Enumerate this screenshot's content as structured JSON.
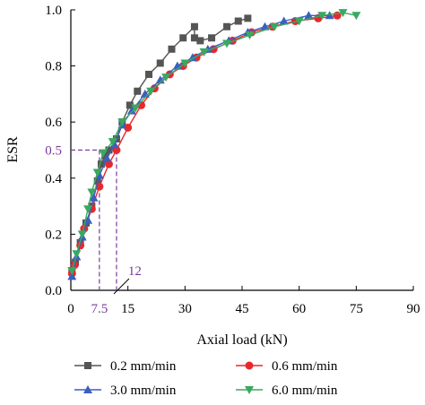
{
  "chart_data": {
    "type": "line",
    "xlabel": "Axial load (kN)",
    "ylabel": "ESR",
    "xlim": [
      0,
      90
    ],
    "ylim": [
      0,
      1.0
    ],
    "x_ticks": [
      0,
      15,
      30,
      45,
      60,
      75,
      90
    ],
    "y_ticks": [
      0.0,
      0.2,
      0.4,
      0.6,
      0.8,
      1.0
    ],
    "grid": false,
    "legend_position": "bottom",
    "annotations": {
      "esr_level": {
        "value": 0.5,
        "label": "0.5",
        "color": "#7a3b9a"
      },
      "load_a": {
        "value": 7.5,
        "label": "7.5",
        "color": "#7a3b9a"
      },
      "load_b": {
        "value": 12,
        "label": "12",
        "color": "#7a3b9a"
      }
    },
    "series": [
      {
        "name": "0.2 mm/min",
        "color": "#555555",
        "marker": "square",
        "points": [
          [
            0.3,
            0.07
          ],
          [
            1.2,
            0.1
          ],
          [
            2.5,
            0.17
          ],
          [
            4,
            0.24
          ],
          [
            5.5,
            0.3
          ],
          [
            7,
            0.39
          ],
          [
            8,
            0.45
          ],
          [
            9,
            0.48
          ],
          [
            10,
            0.5
          ],
          [
            12,
            0.54
          ],
          [
            13.5,
            0.6
          ],
          [
            15.5,
            0.66
          ],
          [
            17.5,
            0.71
          ],
          [
            20.5,
            0.77
          ],
          [
            23.5,
            0.81
          ],
          [
            26.5,
            0.86
          ],
          [
            29.5,
            0.9
          ],
          [
            32.5,
            0.94
          ],
          [
            32.5,
            0.9
          ],
          [
            34,
            0.89
          ],
          [
            37,
            0.9
          ],
          [
            41,
            0.94
          ],
          [
            44,
            0.96
          ],
          [
            46.5,
            0.97
          ]
        ]
      },
      {
        "name": "0.6 mm/min",
        "color": "#e8282d",
        "marker": "circle",
        "points": [
          [
            0.3,
            0.06
          ],
          [
            1,
            0.09
          ],
          [
            2.5,
            0.16
          ],
          [
            3.5,
            0.22
          ],
          [
            5.5,
            0.29
          ],
          [
            7.5,
            0.37
          ],
          [
            10,
            0.45
          ],
          [
            12,
            0.5
          ],
          [
            15,
            0.58
          ],
          [
            18.5,
            0.66
          ],
          [
            22,
            0.72
          ],
          [
            26,
            0.77
          ],
          [
            29.5,
            0.8
          ],
          [
            33,
            0.83
          ],
          [
            37.5,
            0.86
          ],
          [
            42.5,
            0.89
          ],
          [
            47.5,
            0.92
          ],
          [
            53,
            0.94
          ],
          [
            59,
            0.96
          ],
          [
            65,
            0.97
          ],
          [
            70,
            0.98
          ]
        ]
      },
      {
        "name": "3.0 mm/min",
        "color": "#3b5fc0",
        "marker": "triangle",
        "points": [
          [
            0.3,
            0.05
          ],
          [
            1.5,
            0.12
          ],
          [
            3,
            0.19
          ],
          [
            4.5,
            0.25
          ],
          [
            6,
            0.33
          ],
          [
            7.5,
            0.41
          ],
          [
            9.5,
            0.47
          ],
          [
            11.5,
            0.52
          ],
          [
            13.5,
            0.59
          ],
          [
            16,
            0.64
          ],
          [
            19.5,
            0.7
          ],
          [
            23.5,
            0.75
          ],
          [
            28,
            0.8
          ],
          [
            32,
            0.83
          ],
          [
            36,
            0.86
          ],
          [
            41.5,
            0.89
          ],
          [
            46.5,
            0.92
          ],
          [
            51,
            0.94
          ],
          [
            56,
            0.96
          ],
          [
            62.5,
            0.98
          ],
          [
            68,
            0.98
          ]
        ]
      },
      {
        "name": "6.0 mm/min",
        "color": "#3aa860",
        "marker": "triangle-down",
        "points": [
          [
            0.3,
            0.07
          ],
          [
            1.5,
            0.13
          ],
          [
            3,
            0.2
          ],
          [
            4.5,
            0.29
          ],
          [
            5.5,
            0.35
          ],
          [
            7,
            0.42
          ],
          [
            8.5,
            0.49
          ],
          [
            11,
            0.53
          ],
          [
            13.5,
            0.6
          ],
          [
            17,
            0.65
          ],
          [
            21,
            0.71
          ],
          [
            25,
            0.76
          ],
          [
            30,
            0.81
          ],
          [
            35,
            0.85
          ],
          [
            41,
            0.88
          ],
          [
            47,
            0.91
          ],
          [
            53.5,
            0.94
          ],
          [
            60,
            0.96
          ],
          [
            66,
            0.98
          ],
          [
            71.5,
            0.99
          ],
          [
            75,
            0.98
          ]
        ]
      }
    ]
  }
}
